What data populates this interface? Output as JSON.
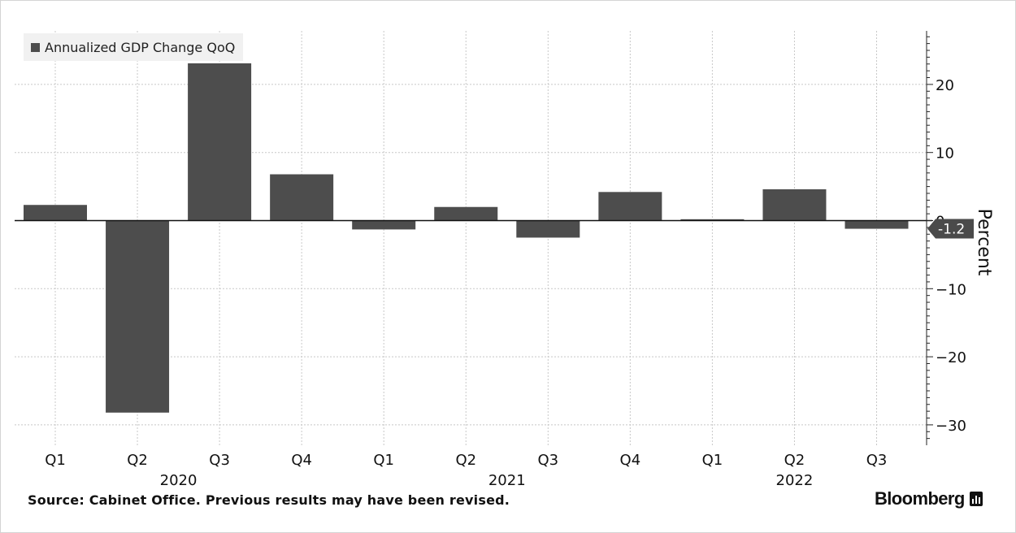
{
  "chart_data": {
    "type": "bar",
    "categories": [
      "Q1",
      "Q2",
      "Q3",
      "Q4",
      "Q1",
      "Q2",
      "Q3",
      "Q4",
      "Q1",
      "Q2",
      "Q3"
    ],
    "years": [
      {
        "label": "2020",
        "categories": [
          0,
          1,
          2,
          3
        ]
      },
      {
        "label": "2021",
        "categories": [
          4,
          5,
          6,
          7
        ]
      },
      {
        "label": "2022",
        "categories": [
          8,
          9,
          10
        ]
      }
    ],
    "series": [
      {
        "name": "Annualized GDP Change QoQ",
        "values": [
          2.3,
          -28.2,
          23.1,
          6.8,
          -1.3,
          2.0,
          -2.5,
          4.2,
          0.2,
          4.6,
          -1.2
        ]
      }
    ],
    "ylabel": "Percent",
    "ylim": [
      -33,
      28
    ],
    "yticks": [
      20,
      10,
      0,
      -10,
      -20,
      -30
    ],
    "y_axis_side": "right",
    "grid": true,
    "legend_position": "top-left",
    "last_value_label": "-1.2",
    "bar_color": "#4d4d4d"
  },
  "footer": {
    "source": "Source: Cabinet Office. Previous results may have been revised.",
    "brand": "Bloomberg"
  }
}
